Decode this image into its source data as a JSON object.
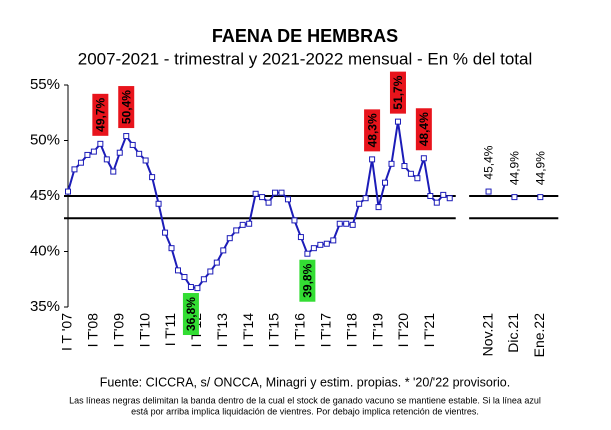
{
  "chart_data": {
    "type": "line",
    "title": "FAENA DE HEMBRAS",
    "subtitle": "2007-2021 - trimestral y 2021-2022 mensual - En % del total",
    "categories": [
      "I T '07",
      null,
      null,
      null,
      "I T'08",
      null,
      null,
      null,
      "I T'09",
      null,
      null,
      null,
      "I T'10",
      null,
      null,
      null,
      "I T'11",
      null,
      null,
      null,
      "I T'12",
      null,
      null,
      null,
      "I T'13",
      null,
      null,
      null,
      "I T'14",
      null,
      null,
      null,
      "I T'15",
      null,
      null,
      null,
      "I T'16",
      null,
      null,
      null,
      "I T'17",
      null,
      null,
      null,
      "I T'18",
      null,
      null,
      null,
      "I T'19",
      null,
      null,
      null,
      "I T'20",
      null,
      null,
      null,
      "I T'21",
      null,
      null,
      null,
      null,
      null,
      null,
      null,
      null,
      "Nov.21",
      null,
      null,
      null,
      "Dic.21",
      null,
      null,
      null,
      "Ene.22"
    ],
    "values": [
      45.4,
      47.4,
      48.0,
      48.7,
      49.0,
      49.7,
      48.3,
      47.2,
      48.9,
      50.4,
      49.6,
      48.8,
      48.2,
      46.7,
      44.3,
      41.7,
      40.3,
      38.3,
      37.7,
      36.8,
      36.7,
      37.5,
      38.2,
      39.0,
      40.1,
      41.2,
      41.9,
      42.4,
      42.5,
      45.2,
      44.9,
      44.4,
      45.3,
      45.3,
      44.7,
      42.8,
      41.3,
      39.8,
      40.3,
      40.6,
      40.7,
      41.0,
      42.5,
      42.5,
      42.4,
      44.3,
      44.8,
      48.3,
      44.0,
      46.2,
      47.9,
      51.7,
      47.7,
      47.0,
      46.6,
      48.4,
      45.0,
      44.4,
      45.1,
      44.8,
      null,
      null,
      null,
      null,
      null,
      45.4,
      null,
      null,
      null,
      44.9,
      null,
      null,
      null,
      44.9
    ],
    "value_labels": [
      null,
      null,
      null,
      null,
      null,
      "49,7%",
      null,
      null,
      null,
      "50,4%",
      null,
      null,
      null,
      null,
      null,
      null,
      null,
      null,
      null,
      "36,8%",
      null,
      null,
      null,
      null,
      null,
      null,
      null,
      null,
      null,
      null,
      null,
      null,
      null,
      null,
      null,
      null,
      null,
      "39,8%",
      null,
      null,
      null,
      null,
      null,
      null,
      null,
      null,
      null,
      "48,3%",
      null,
      null,
      null,
      "51,7%",
      null,
      null,
      null,
      "48,4%",
      null,
      null,
      null,
      null,
      null,
      null,
      null,
      null,
      null,
      "45,4%",
      null,
      null,
      null,
      "44,9%",
      null,
      null,
      null,
      "44,9%"
    ],
    "color": "#1c1cb8",
    "highlight_color": "#e8141c",
    "low_color": "#33dd33",
    "ylim": [
      35,
      55
    ],
    "yticks": [
      {
        "value": 35,
        "label": "35%"
      },
      {
        "value": 40,
        "label": "40%"
      },
      {
        "value": 45,
        "label": "45%"
      },
      {
        "value": 50,
        "label": "50%"
      },
      {
        "value": 55,
        "label": "55%"
      }
    ],
    "hlines": [
      45,
      43
    ],
    "source": "Fuente: CICCRA, s/ ONCCA, Minagri y estim. propias. * '20/'22 provisorio.",
    "note_lines": [
      "Las líneas negras delimitan la banda dentro de la cual el stock de ganado vacuno se mantiene estable. Si la línea azul",
      "está por arriba implica liquidación de vientres. Por debajo implica retención de vientres."
    ]
  }
}
